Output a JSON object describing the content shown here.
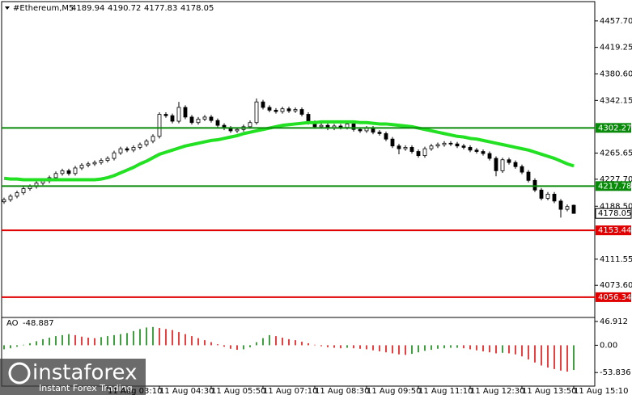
{
  "chart_data": {
    "type": "candlestick",
    "title": "#Ethereum,M5",
    "categories": [
      null,
      null,
      null,
      null,
      null,
      null,
      null,
      null,
      null,
      null,
      null,
      null,
      null,
      null,
      null,
      null,
      "11 Aug 03:10",
      null,
      null,
      null,
      null,
      null,
      null,
      null,
      "11 Aug 04:30",
      null,
      null,
      null,
      null,
      null,
      null,
      null,
      "11 Aug 05:50",
      null,
      null,
      null,
      null,
      null,
      null,
      null,
      "11 Aug 07:10",
      null,
      null,
      null,
      null,
      null,
      null,
      null,
      "11 Aug 08:30",
      null,
      null,
      null,
      null,
      null,
      null,
      null,
      "11 Aug 09:50",
      null,
      null,
      null,
      null,
      null,
      null,
      null,
      "11 Aug 11:10",
      null,
      null,
      null,
      null,
      null,
      null,
      null,
      "11 Aug 12:30",
      null,
      null,
      null,
      null,
      null,
      null,
      null,
      "11 Aug 13:50",
      null,
      null,
      null,
      null,
      null,
      null,
      null,
      "11 Aug 15:10"
    ],
    "open": [
      4195,
      4198,
      4203,
      4208,
      4214,
      4217,
      4222,
      4225,
      4230,
      4236,
      4240,
      4236,
      4244,
      4248,
      4250,
      4252,
      4255,
      4258,
      4266,
      4272,
      4270,
      4274,
      4278,
      4283,
      4290,
      4322,
      4320,
      4312,
      4332,
      4318,
      4310,
      4315,
      4318,
      4313,
      4306,
      4302,
      4298,
      4300,
      4304,
      4310,
      4340,
      4332,
      4328,
      4326,
      4330,
      4327,
      4329,
      4322,
      4310,
      4304,
      4306,
      4302,
      4305,
      4303,
      4308,
      4300,
      4298,
      4302,
      4296,
      4294,
      4286,
      4276,
      4272,
      4274,
      4268,
      4262,
      4272,
      4276,
      4278,
      4280,
      4279,
      4276,
      4274,
      4270,
      4268,
      4265,
      4258,
      4240,
      4256,
      4252,
      4246,
      4238,
      4226,
      4212,
      4200,
      4206,
      4196,
      4184,
      4189.94
    ],
    "high": [
      4201,
      4206,
      4211,
      4217,
      4220,
      4225,
      4228,
      4233,
      4239,
      4243,
      4243,
      4247,
      4251,
      4253,
      4255,
      4258,
      4261,
      4269,
      4275,
      4275,
      4277,
      4281,
      4286,
      4293,
      4325,
      4325,
      4323,
      4340,
      4335,
      4321,
      4318,
      4321,
      4321,
      4316,
      4309,
      4305,
      4303,
      4307,
      4313,
      4345,
      4343,
      4335,
      4331,
      4333,
      4333,
      4332,
      4332,
      4325,
      4313,
      4309,
      4309,
      4308,
      4308,
      4311,
      4311,
      4303,
      4305,
      4305,
      4299,
      4297,
      4289,
      4279,
      4277,
      4277,
      4271,
      4275,
      4279,
      4281,
      4283,
      4283,
      4282,
      4279,
      4277,
      4273,
      4271,
      4268,
      4261,
      4259,
      4259,
      4255,
      4249,
      4241,
      4229,
      4215,
      4209,
      4209,
      4199,
      4191,
      4190.72
    ],
    "low": [
      4192,
      4195,
      4200,
      4205,
      4211,
      4214,
      4219,
      4222,
      4227,
      4233,
      4233,
      4233,
      4241,
      4245,
      4247,
      4249,
      4252,
      4255,
      4263,
      4267,
      4267,
      4271,
      4275,
      4280,
      4287,
      4317,
      4309,
      4309,
      4315,
      4307,
      4307,
      4312,
      4310,
      4303,
      4299,
      4295,
      4295,
      4297,
      4301,
      4307,
      4329,
      4325,
      4323,
      4323,
      4324,
      4324,
      4319,
      4307,
      4301,
      4301,
      4299,
      4299,
      4300,
      4300,
      4297,
      4295,
      4295,
      4293,
      4291,
      4283,
      4273,
      4264,
      4269,
      4265,
      4259,
      4259,
      4269,
      4273,
      4275,
      4276,
      4273,
      4271,
      4267,
      4265,
      4262,
      4255,
      4232,
      4237,
      4249,
      4243,
      4235,
      4223,
      4209,
      4197,
      4197,
      4193,
      4172,
      4181,
      4177.83
    ],
    "close": [
      4198,
      4203,
      4208,
      4214,
      4217,
      4222,
      4225,
      4230,
      4236,
      4240,
      4236,
      4244,
      4248,
      4250,
      4252,
      4255,
      4258,
      4266,
      4272,
      4270,
      4274,
      4278,
      4283,
      4290,
      4322,
      4320,
      4312,
      4332,
      4318,
      4310,
      4315,
      4318,
      4313,
      4306,
      4302,
      4298,
      4300,
      4304,
      4310,
      4340,
      4332,
      4328,
      4326,
      4330,
      4327,
      4329,
      4322,
      4310,
      4304,
      4306,
      4302,
      4305,
      4303,
      4308,
      4300,
      4298,
      4302,
      4296,
      4294,
      4286,
      4276,
      4272,
      4274,
      4268,
      4262,
      4272,
      4276,
      4278,
      4280,
      4279,
      4276,
      4274,
      4270,
      4268,
      4265,
      4258,
      4240,
      4256,
      4252,
      4246,
      4238,
      4226,
      4212,
      4200,
      4206,
      4196,
      4184,
      4188,
      4178.05
    ],
    "up_color": "#ffffff",
    "down_color": "#000000",
    "ma": {
      "color": "#22e022",
      "values": [
        4229,
        4228,
        4228,
        4227,
        4227,
        4227,
        4227,
        4227,
        4227,
        4227,
        4227,
        4227,
        4227,
        4227,
        4227,
        4228,
        4230,
        4233,
        4237,
        4241,
        4245,
        4250,
        4254,
        4259,
        4264,
        4267,
        4270,
        4273,
        4276,
        4278,
        4280,
        4282,
        4284,
        4285,
        4287,
        4289,
        4291,
        4294,
        4296,
        4298,
        4300,
        4302,
        4304,
        4306,
        4307,
        4308,
        4309,
        4310,
        4310,
        4311,
        4311,
        4311,
        4311,
        4311,
        4311,
        4310,
        4310,
        4309,
        4308,
        4308,
        4307,
        4306,
        4305,
        4304,
        4302,
        4300,
        4298,
        4296,
        4294,
        4292,
        4290,
        4289,
        4287,
        4286,
        4284,
        4282,
        4280,
        4278,
        4276,
        4274,
        4272,
        4270,
        4267,
        4264,
        4261,
        4258,
        4254,
        4250,
        4247
      ]
    },
    "ylim": [
      4026.9,
      4485.7
    ],
    "yticks": [
      {
        "value": 4457.7,
        "label": "4457.70"
      },
      4419.25,
      {
        "value": 4380.6,
        "label": "4380.60"
      },
      4342.15,
      4265.65,
      {
        "value": 4227.7,
        "label": "4227.70"
      },
      {
        "value": 4188.5,
        "label": "4188.50"
      },
      4111.55,
      {
        "value": 4073.6,
        "label": "4073.60"
      }
    ],
    "hlines": [
      4302.27,
      4217.78,
      4153.44,
      4056.34
    ],
    "hline_colors": [
      "#0a8a0a",
      "#0a8a0a",
      "#e00000",
      "#e00000"
    ],
    "indicator": {
      "name": "AO",
      "type": "bar",
      "up_color": "#008000",
      "down_color": "#e00000",
      "values": [
        -8,
        -6,
        -3,
        1,
        4,
        8,
        12,
        15,
        18,
        20,
        22,
        20,
        17,
        15,
        14,
        16,
        18,
        20,
        22,
        24,
        28,
        32,
        35,
        36,
        34,
        32,
        30,
        26,
        22,
        18,
        14,
        10,
        6,
        2,
        -3,
        -7,
        -9,
        -8,
        -4,
        6,
        14,
        20,
        18,
        15,
        12,
        10,
        7,
        4,
        1,
        -2,
        -4,
        -5,
        -6,
        -5,
        -6,
        -7,
        -8,
        -10,
        -12,
        -14,
        -16,
        -18,
        -19,
        -17,
        -14,
        -11,
        -9,
        -7,
        -6,
        -5,
        -5,
        -6,
        -8,
        -10,
        -12,
        -14,
        -16,
        -15,
        -16,
        -18,
        -22,
        -28,
        -34,
        -40,
        -44,
        -47,
        -50,
        -52,
        -48.887
      ],
      "ylim": [
        -80.6,
        54.8
      ],
      "yticks": [
        46.912,
        {
          "value": 0,
          "label": "0.00"
        },
        -53.836
      ]
    },
    "watermark": {
      "brand": "instaforex",
      "slogan": "Instant Forex Trading"
    }
  }
}
